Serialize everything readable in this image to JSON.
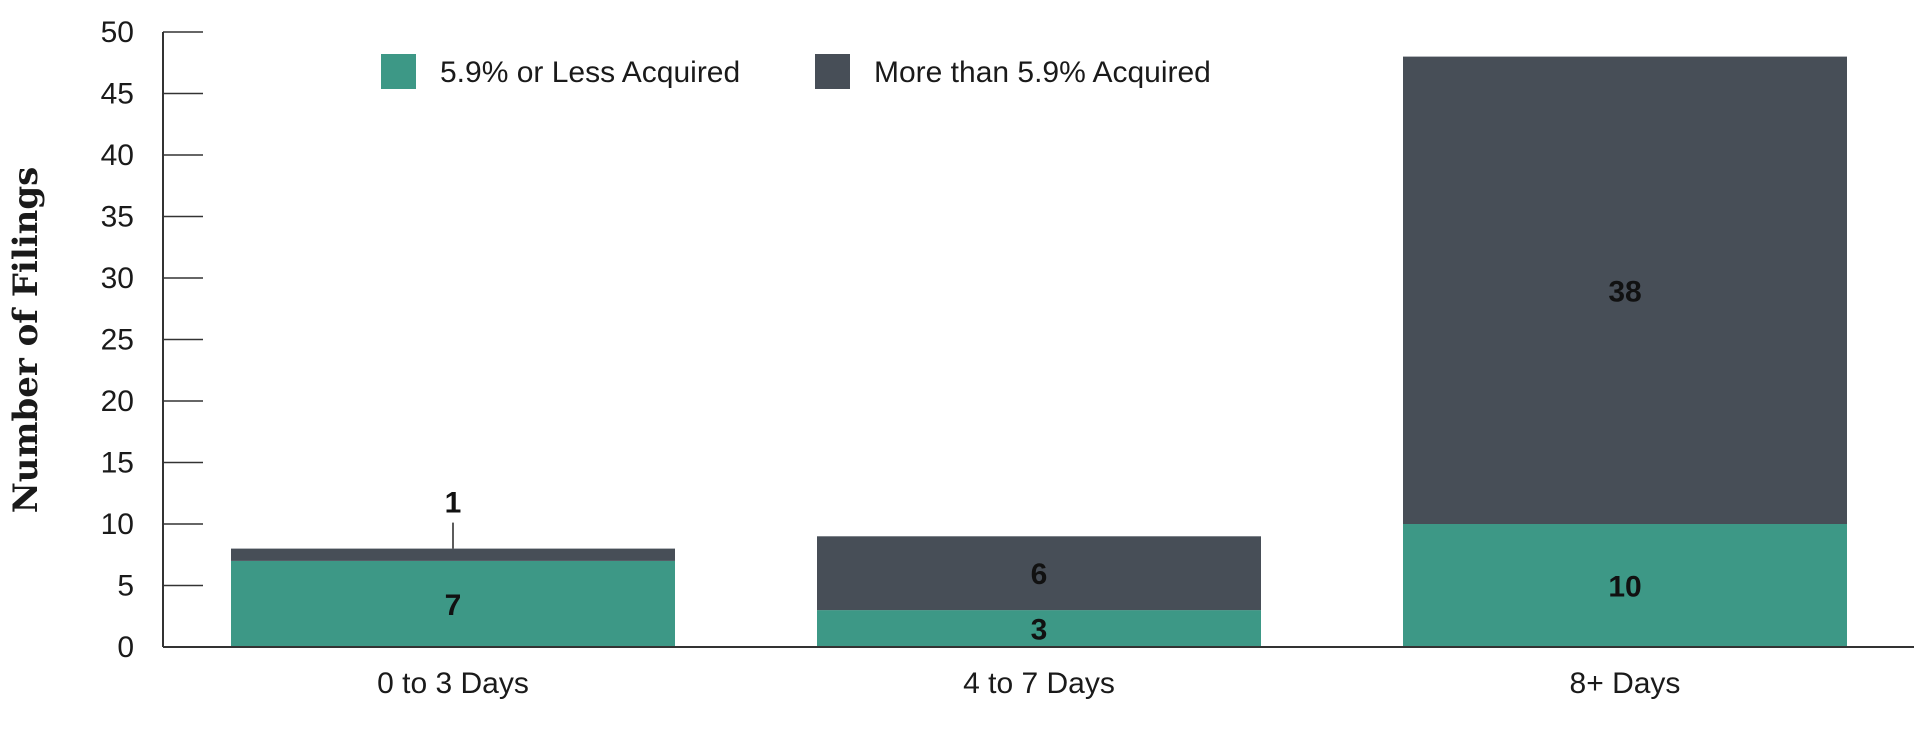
{
  "chart_data": {
    "type": "bar",
    "stacked": true,
    "title": "",
    "xlabel": "",
    "ylabel": "Number of Filings",
    "ylim": [
      0,
      50
    ],
    "yticks": [
      0,
      5,
      10,
      15,
      20,
      25,
      30,
      35,
      40,
      45,
      50
    ],
    "grid": false,
    "legend_position": "top",
    "categories": [
      "0 to 3 Days",
      "4 to 7 Days",
      "8+ Days"
    ],
    "series": [
      {
        "name": "5.9% or Less Acquired",
        "values": [
          7,
          3,
          10
        ],
        "color": "#3d9886"
      },
      {
        "name": "More than 5.9% Acquired",
        "values": [
          1,
          6,
          38
        ],
        "color": "#474e57"
      }
    ],
    "data_labels": [
      [
        "7",
        "3",
        "10"
      ],
      [
        "1",
        "6",
        "38"
      ]
    ]
  }
}
